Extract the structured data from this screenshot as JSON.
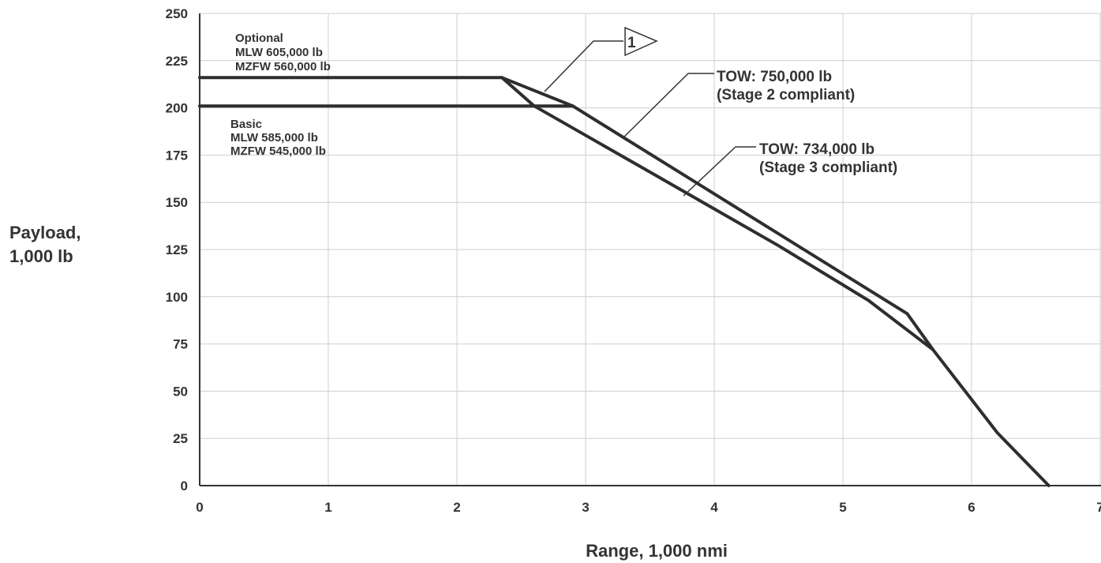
{
  "chart_data": {
    "type": "line",
    "xlabel": "Range, 1,000 nmi",
    "ylabel_lines": [
      "Payload,",
      "1,000 lb"
    ],
    "xlim": [
      0,
      7
    ],
    "ylim": [
      0,
      250
    ],
    "x_ticks": [
      "0",
      "1",
      "2",
      "3",
      "4",
      "5",
      "6",
      "7"
    ],
    "y_ticks": [
      "0",
      "25",
      "50",
      "75",
      "100",
      "125",
      "150",
      "175",
      "200",
      "225",
      "250"
    ],
    "grid": true,
    "series": [
      {
        "name": "TOW: 750,000 lb (Stage 2 compliant), Optional",
        "points": [
          [
            0,
            216
          ],
          [
            2.35,
            216
          ],
          [
            2.9,
            201
          ],
          [
            5.5,
            91
          ],
          [
            5.7,
            72
          ],
          [
            6.2,
            28
          ],
          [
            6.6,
            0
          ]
        ]
      },
      {
        "name": "TOW: 734,000 lb (Stage 3 compliant), Basic",
        "points": [
          [
            0,
            201
          ],
          [
            2.9,
            201
          ]
        ]
      },
      {
        "name": "TOW: 734,000 lb (Stage 3 compliant)",
        "points": [
          [
            2.35,
            216
          ],
          [
            2.6,
            201
          ],
          [
            3.5,
            166
          ],
          [
            4.5,
            127
          ],
          [
            5.2,
            98
          ],
          [
            5.7,
            72
          ]
        ]
      }
    ],
    "annotations": {
      "optional_lines": [
        "Optional",
        "MLW 605,000 lb",
        "MZFW 560,000 lb"
      ],
      "basic_lines": [
        "Basic",
        "MLW 585,000 lb",
        "MZFW 545,000 lb"
      ],
      "tow_750_lines": [
        "TOW:  750,000 lb",
        "(Stage 2 compliant)"
      ],
      "tow_734_lines": [
        "TOW:  734,000 lb",
        "(Stage 3 compliant)"
      ],
      "note_marker": "1"
    }
  }
}
